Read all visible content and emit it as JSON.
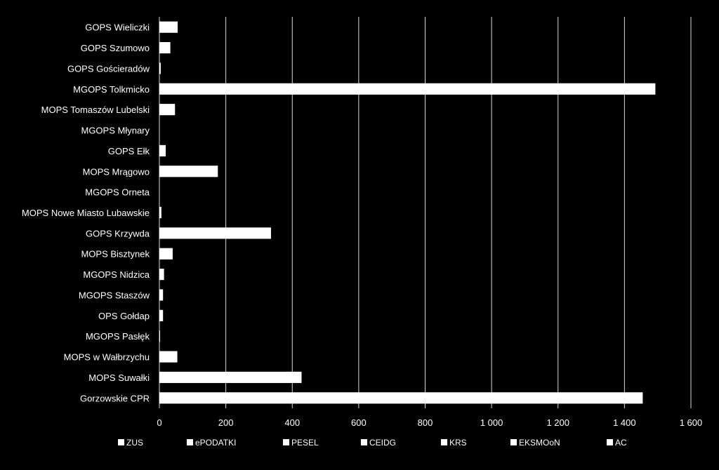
{
  "chart_data": {
    "type": "bar",
    "orientation": "horizontal",
    "stacked": true,
    "categories": [
      "GOPS Wieliczki",
      "GOPS Szumowo",
      "GOPS Gościeradów",
      "MGOPS Tolkmicko",
      "MOPS Tomaszów Lubelski",
      "MGOPS Młynary",
      "GOPS Ełk",
      "MOPS Mrągowo",
      "MGOPS Orneta",
      "MOPS Nowe Miasto Lubawskie",
      "GOPS Krzywda",
      "MOPS Bisztynek",
      "MGOPS Nidzica",
      "MGOPS Staszów",
      "OPS Gołdap",
      "MGOPS Pasłęk",
      "MOPS w Wałbrzychu",
      "MOPS Suwałki",
      "Gorzowskie CPR"
    ],
    "series": [
      {
        "name": "ZUS",
        "values": [
          55,
          33,
          4,
          1493,
          47,
          0,
          19,
          176,
          0,
          6,
          336,
          40,
          14,
          11,
          11,
          2,
          54,
          428,
          1455
        ]
      },
      {
        "name": "ePODATKI",
        "values": [
          0,
          0,
          0,
          0,
          0,
          0,
          0,
          0,
          0,
          0,
          0,
          0,
          0,
          0,
          0,
          0,
          0,
          0,
          0
        ]
      },
      {
        "name": "PESEL",
        "values": [
          0,
          0,
          0,
          0,
          0,
          0,
          0,
          0,
          0,
          0,
          0,
          0,
          0,
          0,
          0,
          0,
          0,
          0,
          0
        ]
      },
      {
        "name": "CEIDG",
        "values": [
          0,
          0,
          0,
          0,
          0,
          0,
          0,
          0,
          0,
          0,
          0,
          0,
          0,
          0,
          0,
          0,
          0,
          0,
          0
        ]
      },
      {
        "name": "KRS",
        "values": [
          0,
          0,
          0,
          0,
          0,
          0,
          0,
          0,
          0,
          0,
          0,
          0,
          0,
          0,
          0,
          0,
          0,
          0,
          0
        ]
      },
      {
        "name": "EKSMOoN",
        "values": [
          0,
          0,
          0,
          0,
          0,
          0,
          0,
          0,
          0,
          0,
          0,
          0,
          0,
          0,
          0,
          0,
          0,
          0,
          0
        ]
      },
      {
        "name": "AC",
        "values": [
          0,
          0,
          0,
          0,
          0,
          0,
          0,
          0,
          0,
          0,
          0,
          0,
          0,
          0,
          0,
          0,
          0,
          0,
          0
        ]
      }
    ],
    "xlim": [
      0,
      1600
    ],
    "x_ticks": [
      0,
      200,
      400,
      600,
      800,
      1000,
      1200,
      1400,
      1600
    ],
    "x_tick_labels": [
      "0",
      "200",
      "400",
      "600",
      "800",
      "1 000",
      "1 200",
      "1 400",
      "1 600"
    ],
    "grid": "vertical",
    "legend_position": "bottom",
    "colors": {
      "background": "#000000",
      "bars": "#ffffff",
      "grid": "#d9d9d9",
      "text": "#ffffff"
    }
  }
}
